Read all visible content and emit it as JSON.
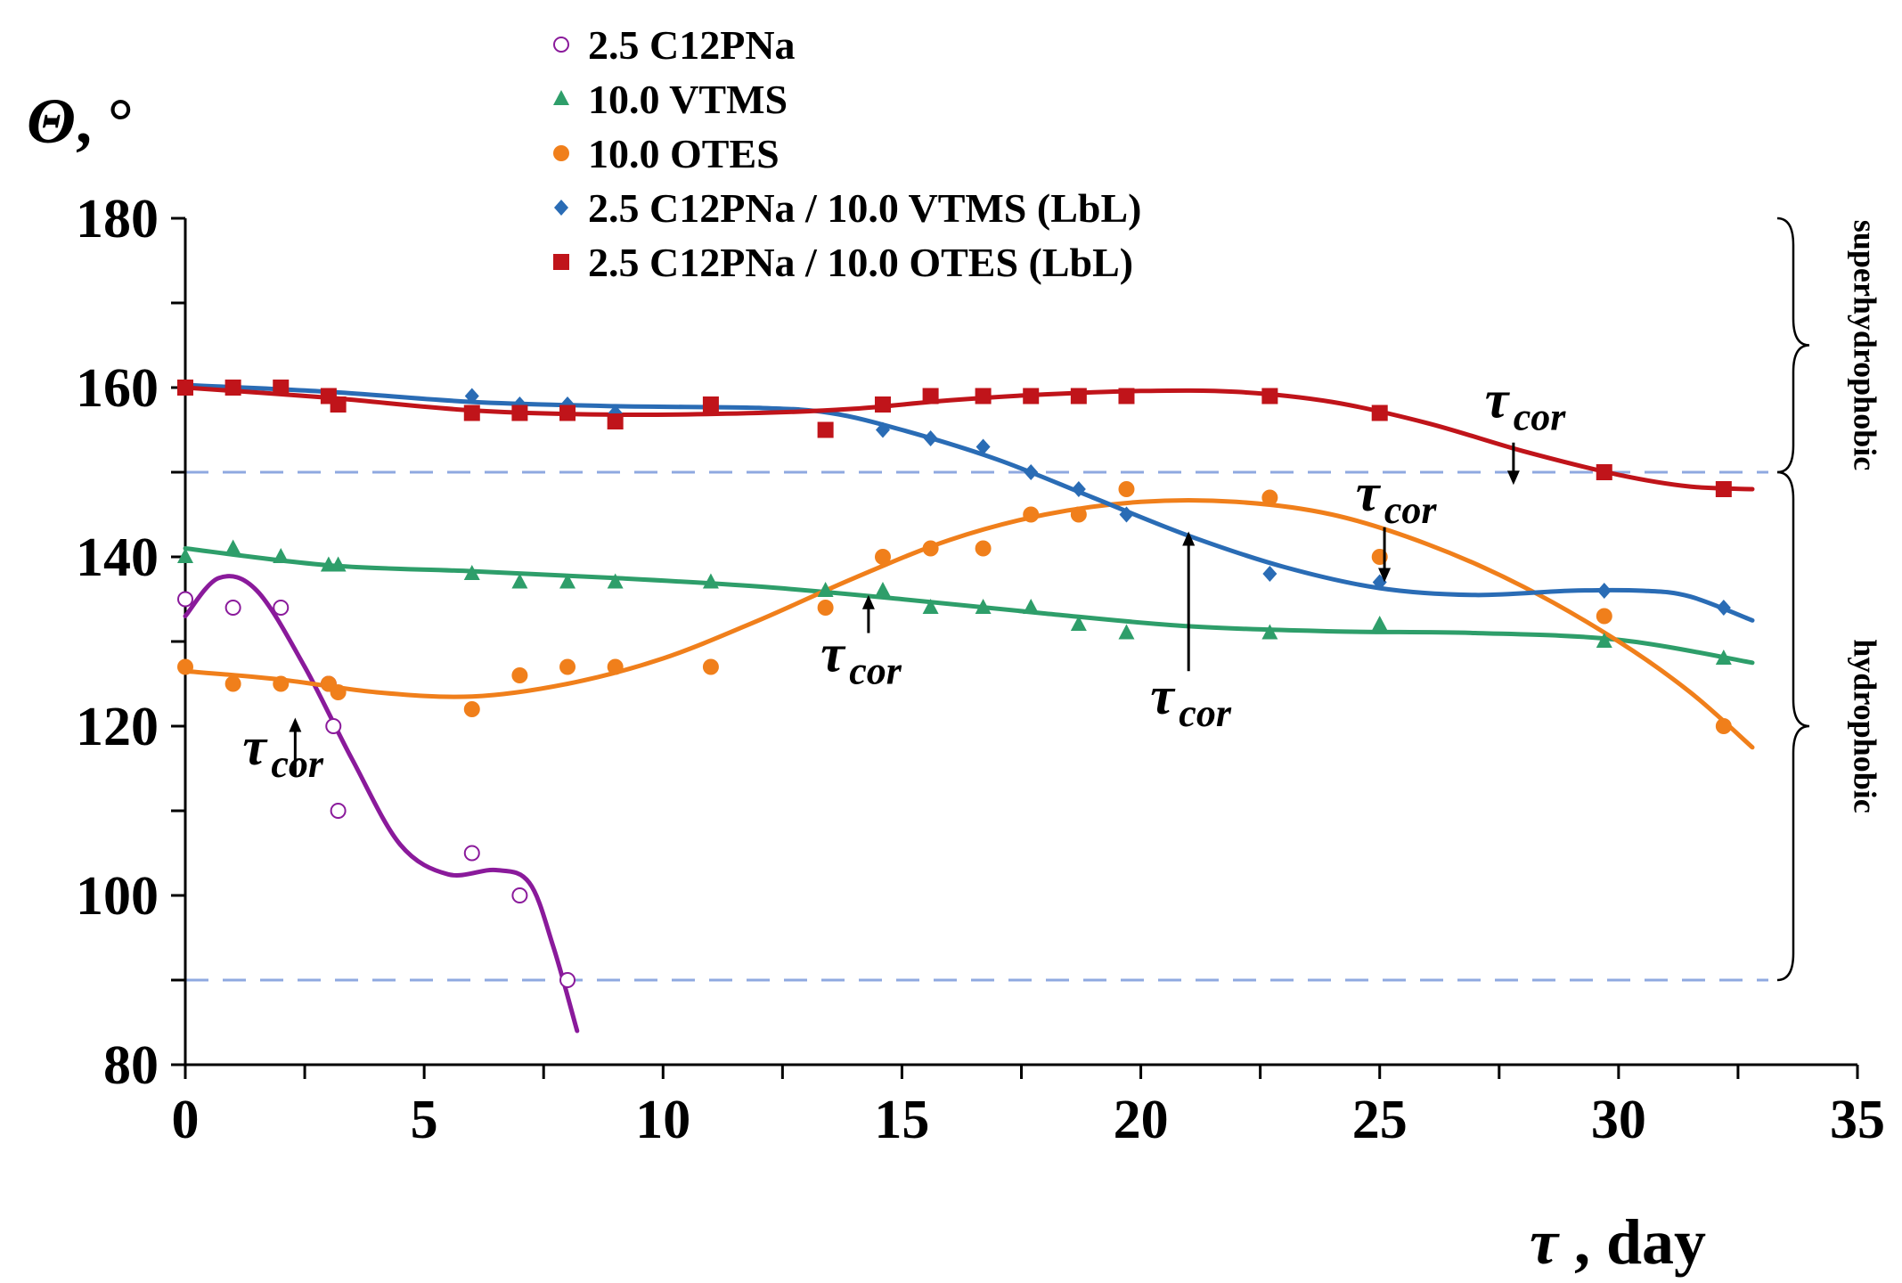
{
  "chart_data": {
    "type": "scatter",
    "title": "",
    "xlabel": {
      "symbol": "τ",
      "text": " , day"
    },
    "ylabel": {
      "symbol": "Θ",
      "text": ", °"
    },
    "xlim": [
      0,
      35
    ],
    "ylim": [
      80,
      180
    ],
    "xticks": [
      0,
      5,
      10,
      15,
      20,
      25,
      30,
      35
    ],
    "yticks": [
      80,
      100,
      120,
      140,
      160,
      180
    ],
    "reference_lines": [
      150,
      90
    ],
    "regions": [
      {
        "label": "superhydrophobic",
        "from": 150,
        "to": 180
      },
      {
        "label": "hydrophobic",
        "from": 90,
        "to": 150
      }
    ],
    "series": [
      {
        "name": "2.5 C12PNa",
        "color": "#8a1a9b",
        "marker": "circle-open",
        "points": [
          [
            0,
            135
          ],
          [
            1,
            134
          ],
          [
            2,
            134
          ],
          [
            3,
            125
          ],
          [
            3.1,
            120
          ],
          [
            3.2,
            110
          ],
          [
            6,
            105
          ],
          [
            7,
            100
          ],
          [
            8,
            90
          ]
        ],
        "fit": [
          [
            0,
            133
          ],
          [
            0.7,
            137.5
          ],
          [
            1.5,
            136
          ],
          [
            2.5,
            127
          ],
          [
            3.5,
            116
          ],
          [
            4.5,
            106
          ],
          [
            5.5,
            102.5
          ],
          [
            6.5,
            103
          ],
          [
            7.2,
            101.5
          ],
          [
            7.7,
            94
          ],
          [
            8.2,
            84
          ]
        ]
      },
      {
        "name": "10.0 VTMS",
        "color": "#2e9e6a",
        "marker": "triangle",
        "points": [
          [
            0,
            140
          ],
          [
            1,
            141
          ],
          [
            2,
            140
          ],
          [
            3,
            139
          ],
          [
            3.2,
            139
          ],
          [
            6,
            138
          ],
          [
            7,
            137
          ],
          [
            8,
            137
          ],
          [
            9,
            137
          ],
          [
            11,
            137
          ],
          [
            13.4,
            136
          ],
          [
            14.6,
            136
          ],
          [
            15.6,
            134
          ],
          [
            16.7,
            134
          ],
          [
            17.7,
            134
          ],
          [
            18.7,
            132
          ],
          [
            19.7,
            131
          ],
          [
            22.7,
            131
          ],
          [
            25,
            132
          ],
          [
            29.7,
            130
          ],
          [
            32.2,
            128
          ]
        ],
        "fit": [
          [
            0,
            141
          ],
          [
            3,
            139
          ],
          [
            6,
            138.3
          ],
          [
            9,
            137.5
          ],
          [
            12,
            136.5
          ],
          [
            15,
            135
          ],
          [
            18,
            133.3
          ],
          [
            21,
            131.8
          ],
          [
            24,
            131.2
          ],
          [
            27,
            131
          ],
          [
            30,
            130.2
          ],
          [
            32.8,
            127.5
          ]
        ]
      },
      {
        "name": "10.0 OTES",
        "color": "#f07f1b",
        "marker": "circle",
        "points": [
          [
            0,
            127
          ],
          [
            1,
            125
          ],
          [
            2,
            125
          ],
          [
            3,
            125
          ],
          [
            3.2,
            124
          ],
          [
            6,
            122
          ],
          [
            7,
            126
          ],
          [
            8,
            127
          ],
          [
            9,
            127
          ],
          [
            11,
            127
          ],
          [
            13.4,
            134
          ],
          [
            14.6,
            140
          ],
          [
            15.6,
            141
          ],
          [
            16.7,
            141
          ],
          [
            17.7,
            145
          ],
          [
            18.7,
            145
          ],
          [
            19.7,
            148
          ],
          [
            22.7,
            147
          ],
          [
            25,
            140
          ],
          [
            29.7,
            133
          ],
          [
            32.2,
            120
          ]
        ],
        "fit": [
          [
            0,
            126.5
          ],
          [
            2,
            125.5
          ],
          [
            4,
            124
          ],
          [
            6,
            123.5
          ],
          [
            8,
            125
          ],
          [
            10,
            128
          ],
          [
            12,
            132.5
          ],
          [
            14,
            137.5
          ],
          [
            16,
            142
          ],
          [
            18,
            145
          ],
          [
            20,
            146.5
          ],
          [
            22,
            146.5
          ],
          [
            24,
            145
          ],
          [
            26,
            141.5
          ],
          [
            28,
            136.5
          ],
          [
            30,
            130
          ],
          [
            31.5,
            124
          ],
          [
            32.8,
            117.5
          ]
        ]
      },
      {
        "name": "2.5 C12PNa / 10.0 VTMS (LbL)",
        "color": "#2a6cb5",
        "marker": "diamond",
        "points": [
          [
            0,
            160
          ],
          [
            1,
            160
          ],
          [
            2,
            160
          ],
          [
            3,
            159
          ],
          [
            6,
            159
          ],
          [
            7,
            158
          ],
          [
            8,
            158
          ],
          [
            9,
            157
          ],
          [
            11,
            158
          ],
          [
            14.6,
            155
          ],
          [
            15.6,
            154
          ],
          [
            16.7,
            153
          ],
          [
            17.7,
            150
          ],
          [
            18.7,
            148
          ],
          [
            19.7,
            145
          ],
          [
            22.7,
            138
          ],
          [
            25,
            137
          ],
          [
            29.7,
            136
          ],
          [
            32.2,
            134
          ]
        ],
        "fit": [
          [
            0,
            160.3
          ],
          [
            3,
            159.5
          ],
          [
            6,
            158.3
          ],
          [
            9,
            157.8
          ],
          [
            12,
            157.6
          ],
          [
            13.5,
            157
          ],
          [
            15,
            155
          ],
          [
            17,
            151.5
          ],
          [
            19,
            147
          ],
          [
            21,
            142.5
          ],
          [
            23,
            138.8
          ],
          [
            25,
            136.3
          ],
          [
            27,
            135.5
          ],
          [
            29,
            136
          ],
          [
            30.5,
            136
          ],
          [
            31.5,
            135.3
          ],
          [
            32.8,
            132.5
          ]
        ]
      },
      {
        "name": "2.5 C12PNa / 10.0 OTES  (LbL)",
        "color": "#c0141a",
        "marker": "square",
        "points": [
          [
            0,
            160
          ],
          [
            1,
            160
          ],
          [
            2,
            160
          ],
          [
            3,
            159
          ],
          [
            3.2,
            158
          ],
          [
            6,
            157
          ],
          [
            7,
            157
          ],
          [
            8,
            157
          ],
          [
            9,
            156
          ],
          [
            11,
            158
          ],
          [
            13.4,
            155
          ],
          [
            14.6,
            158
          ],
          [
            15.6,
            159
          ],
          [
            16.7,
            159
          ],
          [
            17.7,
            159
          ],
          [
            18.7,
            159
          ],
          [
            19.7,
            159
          ],
          [
            22.7,
            159
          ],
          [
            25,
            157
          ],
          [
            29.7,
            150
          ],
          [
            32.2,
            148
          ]
        ],
        "fit": [
          [
            0,
            160
          ],
          [
            3,
            158.8
          ],
          [
            6,
            157.3
          ],
          [
            9,
            156.8
          ],
          [
            12,
            157
          ],
          [
            14,
            157.5
          ],
          [
            16,
            158.5
          ],
          [
            18,
            159.2
          ],
          [
            20,
            159.6
          ],
          [
            22,
            159.5
          ],
          [
            24,
            158.3
          ],
          [
            26,
            155.8
          ],
          [
            28,
            152.5
          ],
          [
            30,
            149.7
          ],
          [
            31.5,
            148.3
          ],
          [
            32.8,
            148
          ]
        ]
      }
    ],
    "annotations": [
      {
        "text": "τ",
        "sub": "cor",
        "tip": [
          2.3,
          121
        ],
        "dir": "up",
        "len": 7,
        "label_at": [
          1.2,
          115.5
        ],
        "arrow": "long"
      },
      {
        "text": "τ",
        "sub": "cor",
        "tip": [
          14.3,
          135.5
        ],
        "dir": "up",
        "len": 4.5,
        "label_at": [
          13.3,
          126.5
        ],
        "arrow": "short"
      },
      {
        "text": "τ",
        "sub": "cor",
        "tip": [
          21,
          143
        ],
        "dir": "up",
        "len": 16.5,
        "label_at": [
          20.2,
          121.5
        ],
        "arrow": "long"
      },
      {
        "text": "τ",
        "sub": "cor",
        "tip": [
          25.1,
          137
        ],
        "dir": "down",
        "len": 6.5,
        "label_at": [
          24.5,
          145.5
        ],
        "arrow": "short"
      },
      {
        "text": "τ",
        "sub": "cor",
        "tip": [
          27.8,
          148.5
        ],
        "dir": "down",
        "len": 5,
        "label_at": [
          27.2,
          156.5
        ],
        "arrow": "short"
      }
    ],
    "legend_position": "top-center"
  }
}
